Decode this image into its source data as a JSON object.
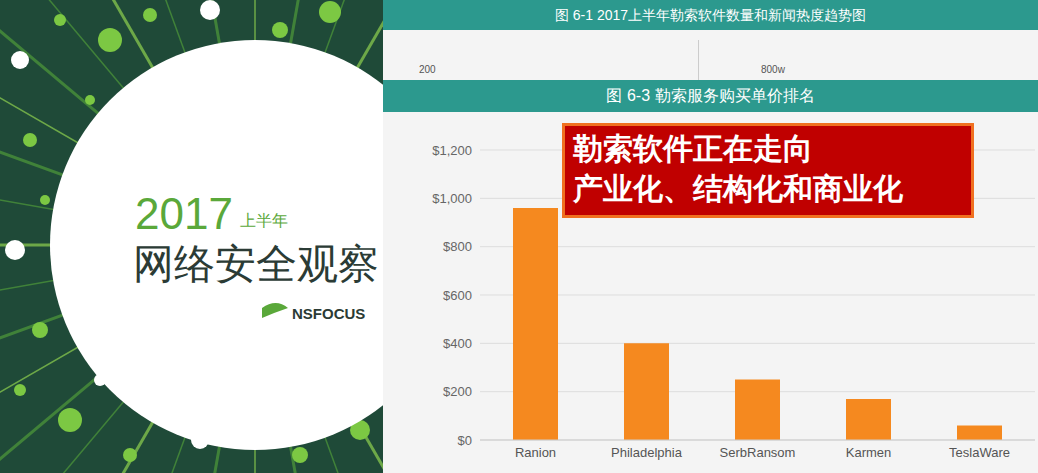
{
  "cover": {
    "year": "2017",
    "half": "上半年",
    "title": "网络安全观察",
    "brand": "NSFOCUS"
  },
  "partial_chart": {
    "title": "图 6-1  2017上半年勒索软件数量和新闻热度趋势图",
    "left_tick": 200,
    "right_tick": "800w"
  },
  "callout": [
    "勒索软件正在走向",
    "产业化、结构化和商业化"
  ],
  "chart_data": {
    "type": "bar",
    "title": "图 6-3  勒索服务购买单价排名",
    "categories": [
      "Ranion",
      "Philadelphia",
      "SerbRansom",
      "Karmen",
      "TeslaWare"
    ],
    "values": [
      960,
      400,
      250,
      170,
      60
    ],
    "color": "#f5891f",
    "ylim": [
      0,
      1200
    ],
    "yticks": [
      {
        "value": 0,
        "label": "$0"
      },
      {
        "value": 200,
        "label": "$200"
      },
      {
        "value": 400,
        "label": "$400"
      },
      {
        "value": 600,
        "label": "$600"
      },
      {
        "value": 800,
        "label": "$800"
      },
      {
        "value": 1000,
        "label": "$1,000"
      },
      {
        "value": 1200,
        "label": "$1,200"
      }
    ],
    "grid": true
  }
}
